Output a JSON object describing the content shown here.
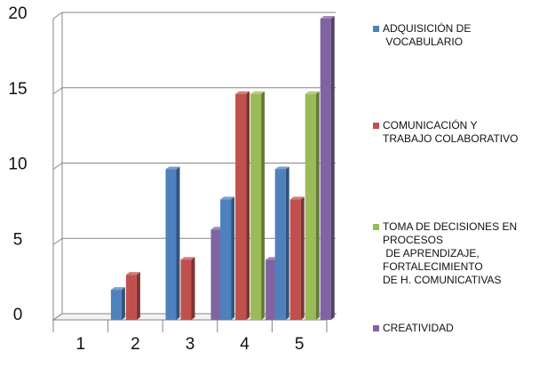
{
  "chart_data": {
    "type": "bar",
    "categories": [
      "1",
      "2",
      "3",
      "4",
      "5"
    ],
    "series": [
      {
        "name": "ADQUISICIÓN DE\n VOCABULARIO",
        "color": "#4F81BD",
        "values": [
          0,
          2,
          10,
          8,
          10
        ]
      },
      {
        "name": "COMUNICACIÓN Y\nTRABAJO COLABORATIVO",
        "color": "#C0504D",
        "values": [
          0,
          3,
          4,
          15,
          8
        ]
      },
      {
        "name": "TOMA DE DECISIONES EN\nPROCESOS\n DE APRENDIZAJE,\nFORTALECIMIENTO\nDE H. COMUNICATIVAS",
        "color": "#9BBB59",
        "values": [
          0,
          0,
          0,
          15,
          15
        ]
      },
      {
        "name": "CREATIVIDAD",
        "color": "#8064A2",
        "values": [
          0,
          0,
          6,
          4,
          20
        ]
      }
    ],
    "yticks": [
      "0",
      "5",
      "10",
      "15",
      "20"
    ],
    "ylim": [
      0,
      20
    ],
    "grid": true,
    "legend_position": "right",
    "projection": "3d-clustered"
  }
}
